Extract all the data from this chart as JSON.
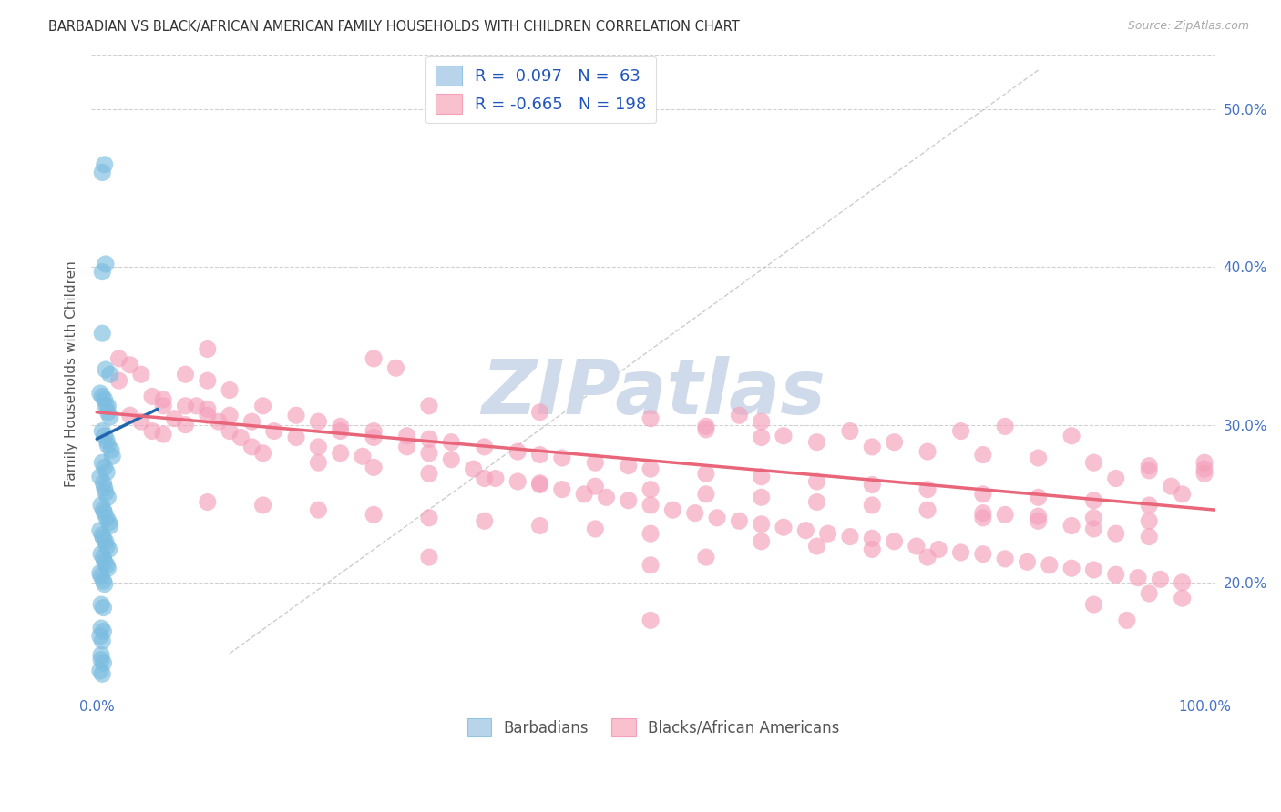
{
  "title": "BARBADIAN VS BLACK/AFRICAN AMERICAN FAMILY HOUSEHOLDS WITH CHILDREN CORRELATION CHART",
  "source": "Source: ZipAtlas.com",
  "ylabel": "Family Households with Children",
  "xlim": [
    -0.005,
    1.01
  ],
  "ylim": [
    0.13,
    0.535
  ],
  "yticks": [
    0.2,
    0.3,
    0.4,
    0.5
  ],
  "ytick_labels": [
    "20.0%",
    "30.0%",
    "40.0%",
    "50.0%"
  ],
  "xtick_vals": [
    0.0,
    0.1,
    0.2,
    0.3,
    0.4,
    0.5,
    0.6,
    0.7,
    0.8,
    0.9,
    1.0
  ],
  "xtick_labels": [
    "0.0%",
    "",
    "",
    "",
    "",
    "",
    "",
    "",
    "",
    "",
    "100.0%"
  ],
  "r_blue": "0.097",
  "n_blue": "63",
  "r_pink": "-0.665",
  "n_pink": "198",
  "blue_scatter_color": "#7bbde0",
  "pink_scatter_color": "#f4a0bb",
  "blue_line_color": "#2166ac",
  "pink_line_color": "#e8657a",
  "ref_line_color": "#c0c0c0",
  "grid_color": "#cccccc",
  "background": "#ffffff",
  "watermark": "ZIPatlas",
  "watermark_color": "#cfdaea",
  "blue_line_x0": 0.0,
  "blue_line_y0": 0.291,
  "blue_line_x1": 0.055,
  "blue_line_y1": 0.31,
  "pink_line_x0": 0.0,
  "pink_line_x1": 1.01,
  "pink_line_y0": 0.308,
  "pink_line_y1": 0.246,
  "ref_line_x0": 0.12,
  "ref_line_y0": 0.155,
  "ref_line_x1": 0.85,
  "ref_line_y1": 0.525,
  "blue_scatter": [
    [
      0.005,
      0.46
    ],
    [
      0.007,
      0.465
    ],
    [
      0.005,
      0.397
    ],
    [
      0.008,
      0.402
    ],
    [
      0.005,
      0.358
    ],
    [
      0.003,
      0.32
    ],
    [
      0.005,
      0.318
    ],
    [
      0.007,
      0.316
    ],
    [
      0.008,
      0.312
    ],
    [
      0.01,
      0.308
    ],
    [
      0.01,
      0.312
    ],
    [
      0.012,
      0.305
    ],
    [
      0.005,
      0.296
    ],
    [
      0.007,
      0.293
    ],
    [
      0.009,
      0.29
    ],
    [
      0.01,
      0.287
    ],
    [
      0.013,
      0.284
    ],
    [
      0.014,
      0.28
    ],
    [
      0.005,
      0.276
    ],
    [
      0.007,
      0.273
    ],
    [
      0.009,
      0.27
    ],
    [
      0.003,
      0.267
    ],
    [
      0.006,
      0.263
    ],
    [
      0.007,
      0.26
    ],
    [
      0.008,
      0.257
    ],
    [
      0.01,
      0.254
    ],
    [
      0.004,
      0.249
    ],
    [
      0.006,
      0.246
    ],
    [
      0.007,
      0.244
    ],
    [
      0.009,
      0.241
    ],
    [
      0.011,
      0.238
    ],
    [
      0.012,
      0.236
    ],
    [
      0.003,
      0.233
    ],
    [
      0.005,
      0.23
    ],
    [
      0.006,
      0.228
    ],
    [
      0.008,
      0.226
    ],
    [
      0.009,
      0.223
    ],
    [
      0.011,
      0.221
    ],
    [
      0.004,
      0.218
    ],
    [
      0.006,
      0.216
    ],
    [
      0.007,
      0.213
    ],
    [
      0.009,
      0.211
    ],
    [
      0.01,
      0.209
    ],
    [
      0.003,
      0.206
    ],
    [
      0.004,
      0.204
    ],
    [
      0.006,
      0.201
    ],
    [
      0.007,
      0.199
    ],
    [
      0.004,
      0.186
    ],
    [
      0.006,
      0.184
    ],
    [
      0.004,
      0.171
    ],
    [
      0.006,
      0.169
    ],
    [
      0.003,
      0.166
    ],
    [
      0.005,
      0.163
    ],
    [
      0.004,
      0.151
    ],
    [
      0.006,
      0.149
    ],
    [
      0.003,
      0.144
    ],
    [
      0.005,
      0.142
    ],
    [
      0.004,
      0.154
    ],
    [
      0.008,
      0.335
    ],
    [
      0.012,
      0.332
    ]
  ],
  "pink_scatter": [
    [
      0.02,
      0.342
    ],
    [
      0.03,
      0.338
    ],
    [
      0.02,
      0.328
    ],
    [
      0.04,
      0.332
    ],
    [
      0.05,
      0.318
    ],
    [
      0.06,
      0.312
    ],
    [
      0.03,
      0.306
    ],
    [
      0.04,
      0.302
    ],
    [
      0.05,
      0.296
    ],
    [
      0.07,
      0.304
    ],
    [
      0.08,
      0.3
    ],
    [
      0.06,
      0.294
    ],
    [
      0.09,
      0.312
    ],
    [
      0.1,
      0.306
    ],
    [
      0.11,
      0.302
    ],
    [
      0.12,
      0.296
    ],
    [
      0.13,
      0.292
    ],
    [
      0.14,
      0.286
    ],
    [
      0.15,
      0.282
    ],
    [
      0.08,
      0.332
    ],
    [
      0.1,
      0.328
    ],
    [
      0.12,
      0.322
    ],
    [
      0.06,
      0.316
    ],
    [
      0.08,
      0.312
    ],
    [
      0.1,
      0.31
    ],
    [
      0.12,
      0.306
    ],
    [
      0.14,
      0.302
    ],
    [
      0.16,
      0.296
    ],
    [
      0.18,
      0.292
    ],
    [
      0.2,
      0.286
    ],
    [
      0.22,
      0.282
    ],
    [
      0.24,
      0.28
    ],
    [
      0.25,
      0.342
    ],
    [
      0.27,
      0.336
    ],
    [
      0.22,
      0.296
    ],
    [
      0.25,
      0.292
    ],
    [
      0.28,
      0.286
    ],
    [
      0.3,
      0.282
    ],
    [
      0.32,
      0.278
    ],
    [
      0.34,
      0.272
    ],
    [
      0.36,
      0.266
    ],
    [
      0.38,
      0.264
    ],
    [
      0.4,
      0.262
    ],
    [
      0.42,
      0.259
    ],
    [
      0.44,
      0.256
    ],
    [
      0.46,
      0.254
    ],
    [
      0.48,
      0.252
    ],
    [
      0.5,
      0.249
    ],
    [
      0.52,
      0.246
    ],
    [
      0.54,
      0.244
    ],
    [
      0.56,
      0.241
    ],
    [
      0.58,
      0.239
    ],
    [
      0.6,
      0.237
    ],
    [
      0.62,
      0.235
    ],
    [
      0.64,
      0.233
    ],
    [
      0.66,
      0.231
    ],
    [
      0.68,
      0.229
    ],
    [
      0.7,
      0.228
    ],
    [
      0.72,
      0.226
    ],
    [
      0.74,
      0.223
    ],
    [
      0.76,
      0.221
    ],
    [
      0.78,
      0.219
    ],
    [
      0.8,
      0.218
    ],
    [
      0.82,
      0.215
    ],
    [
      0.84,
      0.213
    ],
    [
      0.86,
      0.211
    ],
    [
      0.88,
      0.209
    ],
    [
      0.9,
      0.208
    ],
    [
      0.92,
      0.205
    ],
    [
      0.94,
      0.203
    ],
    [
      0.96,
      0.202
    ],
    [
      0.98,
      0.2
    ],
    [
      1.0,
      0.272
    ],
    [
      0.15,
      0.312
    ],
    [
      0.18,
      0.306
    ],
    [
      0.2,
      0.302
    ],
    [
      0.22,
      0.299
    ],
    [
      0.25,
      0.296
    ],
    [
      0.28,
      0.293
    ],
    [
      0.3,
      0.291
    ],
    [
      0.32,
      0.289
    ],
    [
      0.35,
      0.286
    ],
    [
      0.38,
      0.283
    ],
    [
      0.4,
      0.281
    ],
    [
      0.42,
      0.279
    ],
    [
      0.45,
      0.276
    ],
    [
      0.48,
      0.274
    ],
    [
      0.5,
      0.272
    ],
    [
      0.55,
      0.269
    ],
    [
      0.6,
      0.267
    ],
    [
      0.65,
      0.264
    ],
    [
      0.7,
      0.262
    ],
    [
      0.75,
      0.259
    ],
    [
      0.8,
      0.256
    ],
    [
      0.85,
      0.254
    ],
    [
      0.9,
      0.252
    ],
    [
      0.95,
      0.249
    ],
    [
      0.2,
      0.276
    ],
    [
      0.25,
      0.273
    ],
    [
      0.3,
      0.269
    ],
    [
      0.35,
      0.266
    ],
    [
      0.4,
      0.263
    ],
    [
      0.45,
      0.261
    ],
    [
      0.5,
      0.259
    ],
    [
      0.55,
      0.256
    ],
    [
      0.6,
      0.254
    ],
    [
      0.65,
      0.251
    ],
    [
      0.7,
      0.249
    ],
    [
      0.75,
      0.246
    ],
    [
      0.8,
      0.244
    ],
    [
      0.85,
      0.242
    ],
    [
      0.9,
      0.241
    ],
    [
      0.95,
      0.239
    ],
    [
      0.1,
      0.251
    ],
    [
      0.15,
      0.249
    ],
    [
      0.2,
      0.246
    ],
    [
      0.25,
      0.243
    ],
    [
      0.3,
      0.241
    ],
    [
      0.35,
      0.239
    ],
    [
      0.4,
      0.236
    ],
    [
      0.45,
      0.234
    ],
    [
      0.5,
      0.231
    ],
    [
      0.3,
      0.216
    ],
    [
      0.5,
      0.211
    ],
    [
      0.55,
      0.216
    ],
    [
      0.6,
      0.226
    ],
    [
      0.65,
      0.223
    ],
    [
      0.7,
      0.221
    ],
    [
      0.75,
      0.216
    ],
    [
      0.8,
      0.241
    ],
    [
      0.82,
      0.243
    ],
    [
      0.85,
      0.239
    ],
    [
      0.88,
      0.236
    ],
    [
      0.9,
      0.234
    ],
    [
      0.92,
      0.231
    ],
    [
      0.95,
      0.229
    ],
    [
      0.6,
      0.292
    ],
    [
      0.65,
      0.289
    ],
    [
      0.7,
      0.286
    ],
    [
      0.75,
      0.283
    ],
    [
      0.8,
      0.281
    ],
    [
      0.85,
      0.279
    ],
    [
      0.9,
      0.276
    ],
    [
      0.95,
      0.274
    ],
    [
      0.1,
      0.348
    ],
    [
      0.3,
      0.312
    ],
    [
      0.4,
      0.308
    ],
    [
      0.5,
      0.176
    ],
    [
      0.55,
      0.297
    ],
    [
      0.6,
      0.302
    ],
    [
      0.9,
      0.186
    ],
    [
      0.95,
      0.193
    ],
    [
      0.98,
      0.19
    ],
    [
      0.93,
      0.176
    ],
    [
      0.5,
      0.304
    ],
    [
      0.55,
      0.299
    ],
    [
      0.58,
      0.306
    ],
    [
      0.62,
      0.293
    ],
    [
      0.68,
      0.296
    ],
    [
      0.72,
      0.289
    ],
    [
      0.78,
      0.296
    ],
    [
      0.82,
      0.299
    ],
    [
      0.88,
      0.293
    ],
    [
      0.92,
      0.266
    ],
    [
      0.95,
      0.271
    ],
    [
      0.97,
      0.261
    ],
    [
      0.98,
      0.256
    ],
    [
      1.0,
      0.276
    ],
    [
      1.0,
      0.269
    ]
  ]
}
